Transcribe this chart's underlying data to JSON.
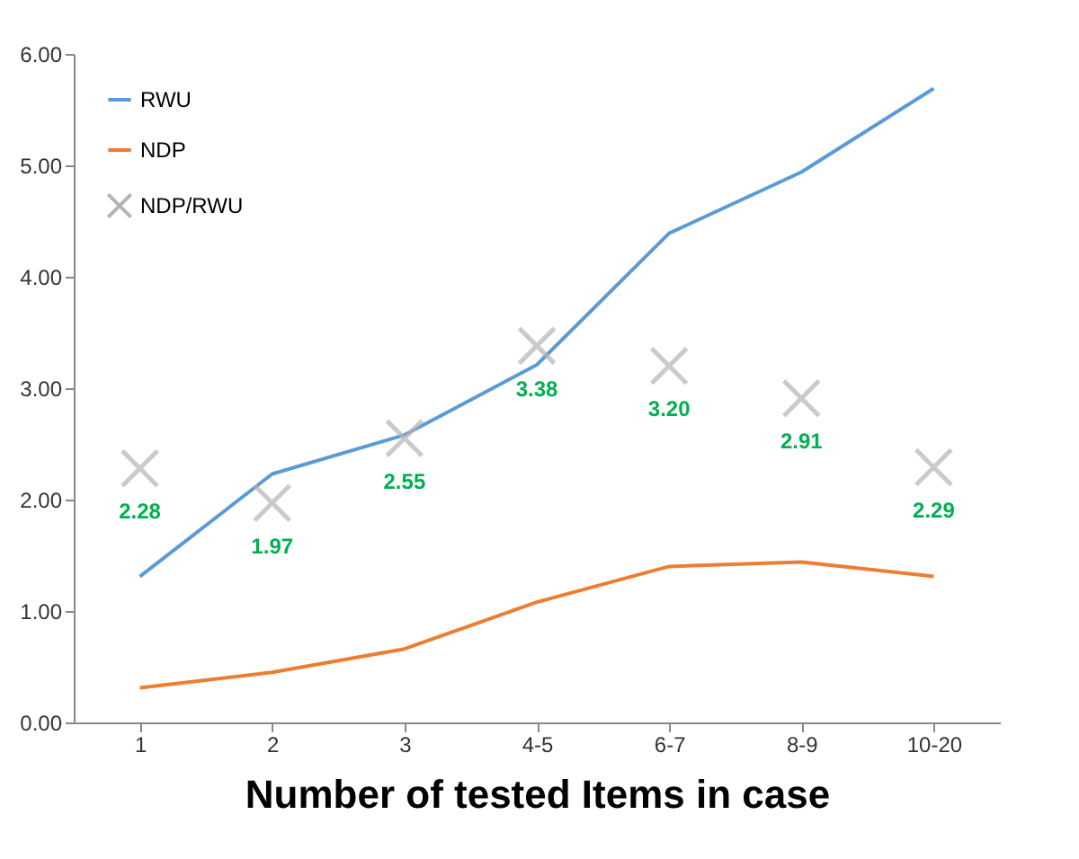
{
  "chart_data": {
    "type": "line",
    "xlabel": "Number of tested Items in case",
    "categories": [
      "1",
      "2",
      "3",
      "4-5",
      "6-7",
      "8-9",
      "10-20"
    ],
    "ylim": [
      0,
      6
    ],
    "yticks": [
      {
        "value": 0,
        "label": "0.00"
      },
      {
        "value": 1,
        "label": "1.00"
      },
      {
        "value": 2,
        "label": "2.00"
      },
      {
        "value": 3,
        "label": "3.00"
      },
      {
        "value": 4,
        "label": "4.00"
      },
      {
        "value": 5,
        "label": "5.00"
      },
      {
        "value": 6,
        "label": "6.00"
      }
    ],
    "legend": "top left",
    "grid": false,
    "series": [
      {
        "name": "RWU",
        "color": "#5b9bd5",
        "line_style": "solid",
        "values": [
          1.31,
          2.23,
          2.58,
          3.21,
          4.39,
          4.94,
          5.69
        ]
      },
      {
        "name": "NDP",
        "color": "#ed7d31",
        "line_style": "solid",
        "values": [
          0.31,
          0.45,
          0.66,
          1.08,
          1.4,
          1.44,
          1.31
        ]
      },
      {
        "name": "NDP/RWU",
        "type": "scatter",
        "color": "#b4b4b4",
        "marker": "cross",
        "values": [
          2.28,
          1.97,
          2.55,
          3.38,
          3.2,
          2.91,
          2.29
        ],
        "value_labels": [
          "2.28",
          "1.97",
          "2.55",
          "3.38",
          "3.20",
          "2.91",
          "2.29"
        ]
      }
    ]
  }
}
